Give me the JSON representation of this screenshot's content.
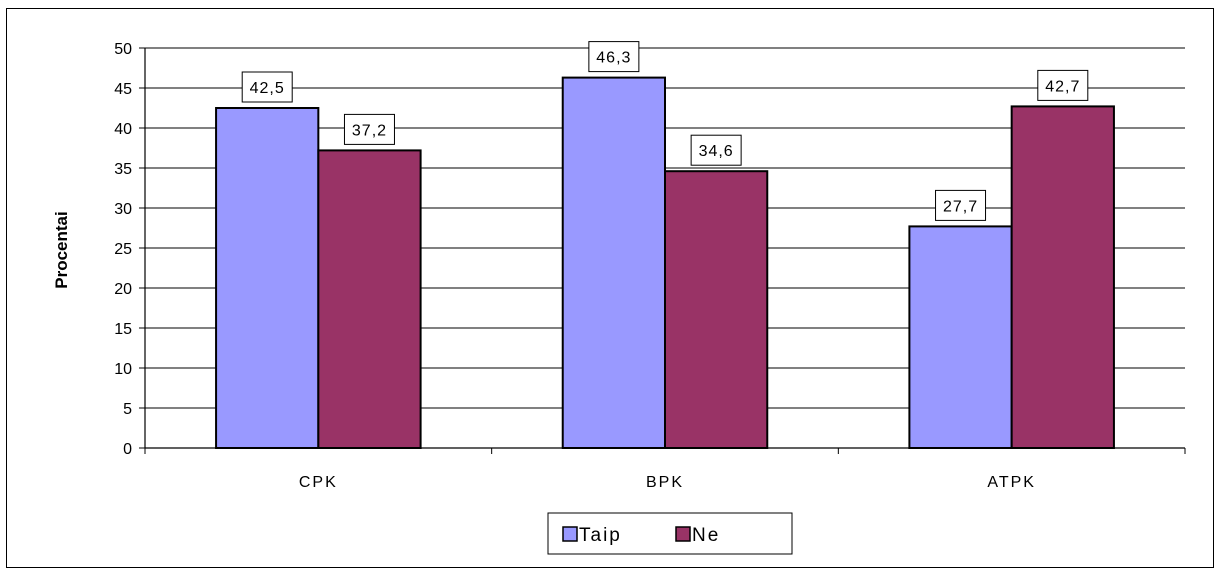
{
  "chart_data": {
    "type": "bar",
    "title": "",
    "xlabel": "",
    "ylabel": "Procentai",
    "categories": [
      "CPK",
      "BPK",
      "ATPK"
    ],
    "series": [
      {
        "name": "Taip",
        "values": [
          42.5,
          46.3,
          27.7
        ],
        "labels": [
          "42,5",
          "46,3",
          "27,7"
        ],
        "color": "#9999ff"
      },
      {
        "name": "Ne",
        "values": [
          37.2,
          34.6,
          42.7
        ],
        "labels": [
          "37,2",
          "34,6",
          "42,7"
        ],
        "color": "#993366"
      }
    ],
    "ylim": [
      0,
      50
    ],
    "yticks": [
      0,
      5,
      10,
      15,
      20,
      25,
      30,
      35,
      40,
      45,
      50
    ],
    "grid": true,
    "legend": "bottom-center"
  }
}
